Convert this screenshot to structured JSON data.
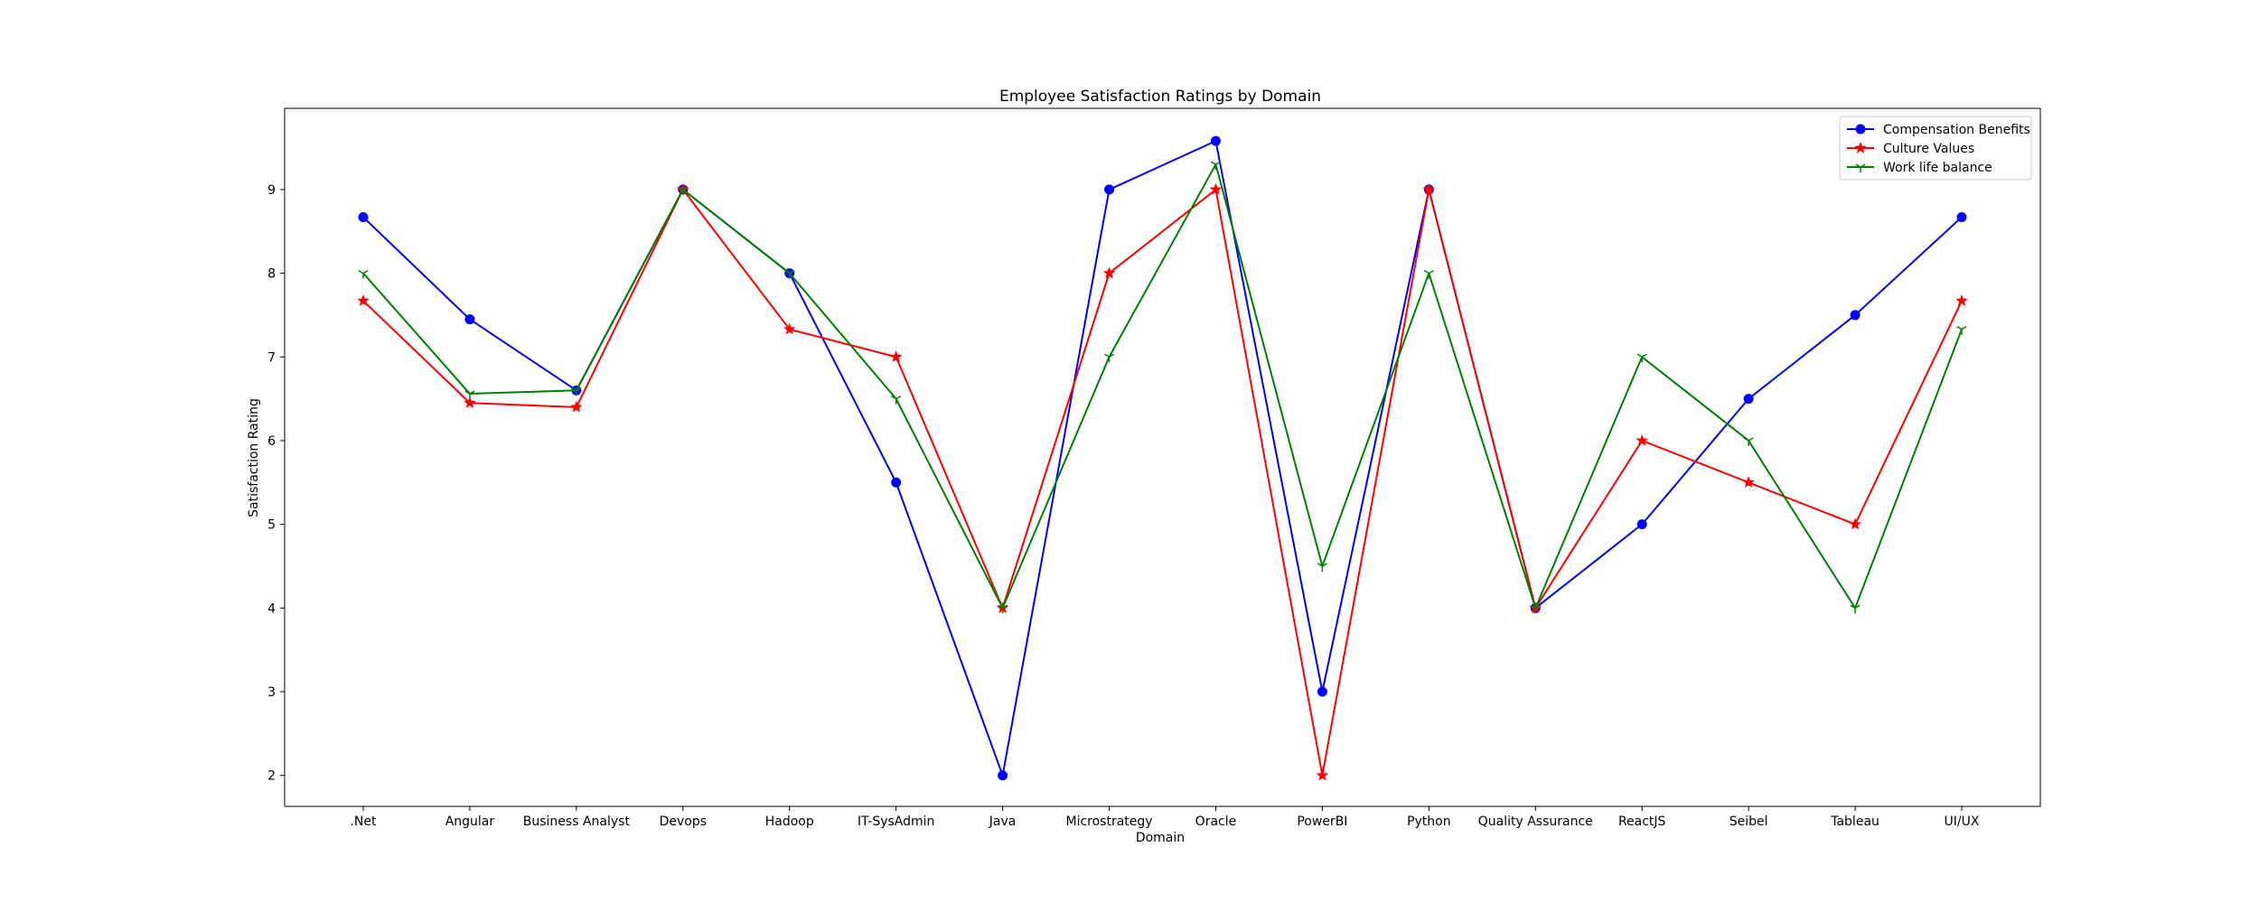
{
  "chart_data": {
    "type": "line",
    "title": "Employee Satisfaction Ratings by Domain",
    "xlabel": "Domain",
    "ylabel": "Satisfaction Rating",
    "categories": [
      ".Net",
      "Angular",
      "Business Analyst",
      "Devops",
      "Hadoop",
      "IT-SysAdmin",
      "Java",
      "Microstrategy",
      "Oracle",
      "PowerBI",
      "Python",
      "Quality Assurance",
      "ReactJS",
      "Seibel",
      "Tableau",
      "UI/UX"
    ],
    "ylim": [
      1.63,
      9.97
    ],
    "yticks": [
      2,
      3,
      4,
      5,
      6,
      7,
      8,
      9
    ],
    "grid": false,
    "legend_position": "top-right",
    "series": [
      {
        "name": "Compensation Benefits",
        "color": "#0000ff",
        "marker": "circle",
        "values": [
          8.67,
          7.45,
          6.6,
          9.0,
          8.0,
          5.5,
          2.0,
          9.0,
          9.58,
          3.0,
          9.0,
          4.0,
          5.0,
          6.5,
          7.5,
          8.67
        ]
      },
      {
        "name": "Culture Values",
        "color": "#ff0000",
        "marker": "star",
        "values": [
          7.67,
          6.45,
          6.4,
          9.0,
          7.33,
          7.0,
          4.0,
          8.0,
          9.0,
          2.0,
          9.0,
          4.0,
          6.0,
          5.5,
          5.0,
          7.67
        ]
      },
      {
        "name": "Work life balance",
        "color": "#008000",
        "marker": "tri_down",
        "values": [
          8.0,
          6.56,
          6.6,
          9.0,
          8.0,
          6.5,
          4.0,
          7.0,
          9.3,
          4.5,
          8.0,
          4.0,
          7.0,
          6.0,
          4.0,
          7.33
        ]
      }
    ]
  }
}
